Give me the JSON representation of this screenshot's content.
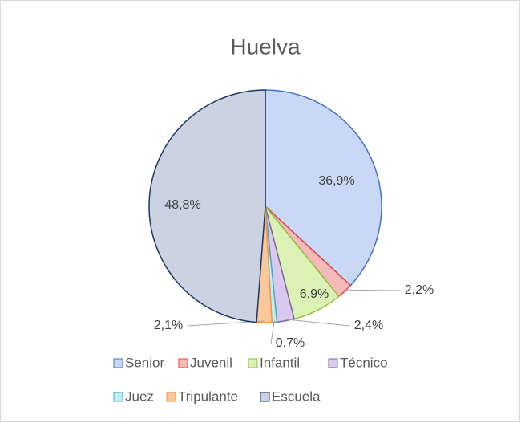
{
  "chart_data": {
    "type": "pie",
    "title": "Huelva",
    "categories": [
      "Senior",
      "Juvenil",
      "Infantil",
      "Técnico",
      "Juez",
      "Tripulante",
      "Escuela"
    ],
    "values": [
      36.9,
      2.2,
      6.9,
      2.4,
      0.7,
      2.1,
      48.8
    ],
    "value_labels": [
      "36,9%",
      "2,2%",
      "6,9%",
      "2,4%",
      "0,7%",
      "2,1%",
      "48,8%"
    ],
    "colors": [
      "#c9d8f7",
      "#f6baba",
      "#dcf2b4",
      "#d9c9ef",
      "#bdeef6",
      "#fbc89c",
      "#cbd3e3"
    ],
    "edge_colors": [
      "#4472c4",
      "#e04848",
      "#8fc43c",
      "#8064a2",
      "#4bacc6",
      "#f79646",
      "#1f3864"
    ],
    "legend": "bottom"
  }
}
